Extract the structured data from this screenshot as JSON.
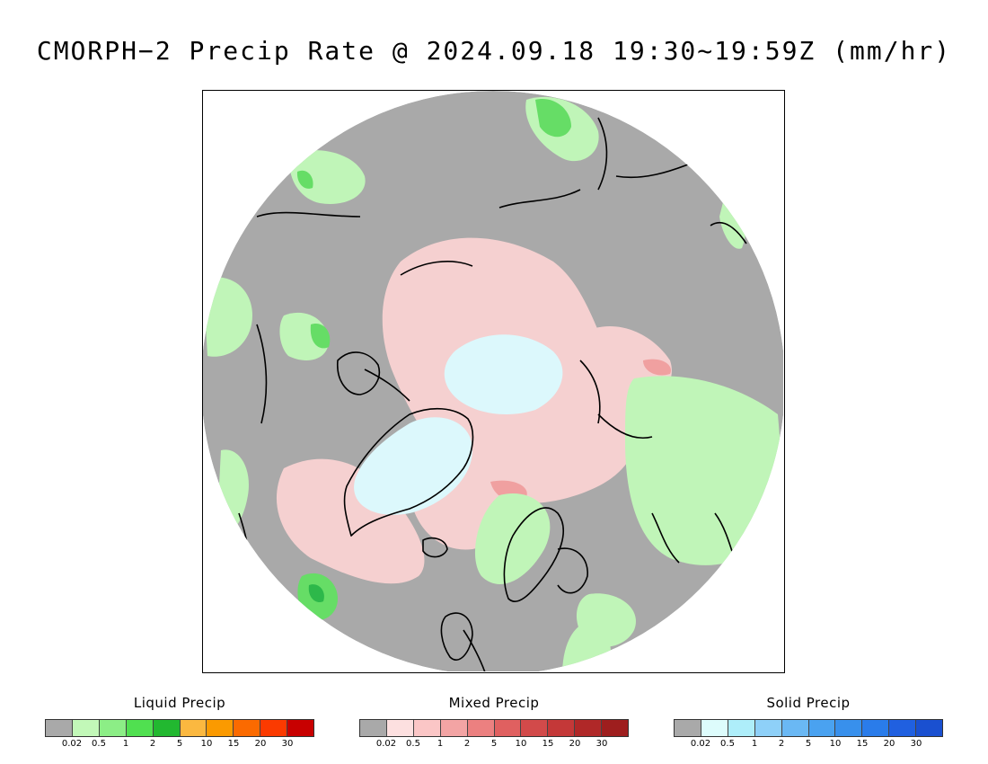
{
  "title": "CMORPH−2 Precip Rate @ 2024.09.18 19:30~19:59Z (mm/hr)",
  "map": {
    "projection": "north-polar-stereographic",
    "colors": {
      "background_gray": "#a9a9a9",
      "coast": "#000000",
      "mixed_light": "#f5d0d0",
      "mixed_medium": "#f0a0a0",
      "solid_light": "#dcf8fc",
      "liquid_light": "#c0f5b8",
      "liquid_medium": "#66dd66",
      "liquid_dark": "#2db84a"
    }
  },
  "legends": [
    {
      "id": "liquid",
      "title": "Liquid Precip",
      "colors": [
        "#a9a9a9",
        "#c2f8b8",
        "#8cee86",
        "#50e050",
        "#22b830",
        "#fbb840",
        "#fb9a00",
        "#fb6a00",
        "#fb3a00",
        "#c80000"
      ],
      "ticks": [
        "0.02",
        "0.5",
        "1",
        "2",
        "5",
        "10",
        "15",
        "20",
        "30"
      ]
    },
    {
      "id": "mixed",
      "title": "Mixed Precip",
      "colors": [
        "#a9a9a9",
        "#fde0e0",
        "#fbc6c6",
        "#f3a4a4",
        "#ec8080",
        "#e06060",
        "#d24a4a",
        "#c43838",
        "#b02828",
        "#9e1e1e"
      ],
      "ticks": [
        "0.02",
        "0.5",
        "1",
        "2",
        "5",
        "10",
        "15",
        "20",
        "30"
      ]
    },
    {
      "id": "solid",
      "title": "Solid Precip",
      "colors": [
        "#a9a9a9",
        "#ddfcfc",
        "#aeeefa",
        "#8ed0f8",
        "#6ab8f4",
        "#4aa2f0",
        "#3890ec",
        "#2a7cea",
        "#2060e0",
        "#1a50d0"
      ],
      "ticks": [
        "0.02",
        "0.5",
        "1",
        "2",
        "5",
        "10",
        "15",
        "20",
        "30"
      ]
    }
  ]
}
